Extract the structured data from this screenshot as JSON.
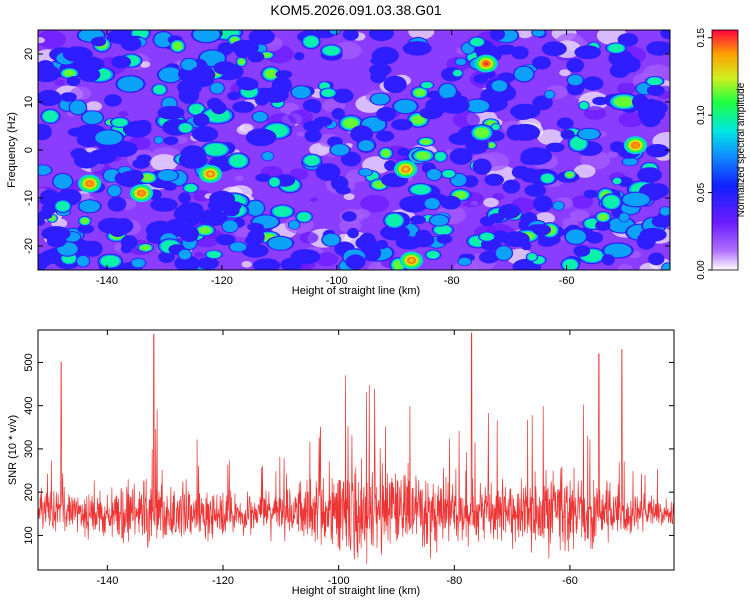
{
  "title": "KOM5.2026.091.03.38.G01",
  "chart_data": [
    {
      "type": "heatmap",
      "xlabel": "Height of straight line (km)",
      "ylabel": "Frequency (Hz)",
      "xlim": [
        -152,
        -42
      ],
      "ylim": [
        -25,
        25
      ],
      "xticks": [
        "-140",
        "-120",
        "-100",
        "-80",
        "-60"
      ],
      "yticks": [
        "20",
        "10",
        "0",
        "-10",
        "-20"
      ],
      "colorbar": {
        "label": "Normalized spectral amplitude",
        "range": [
          0,
          0.155
        ],
        "ticks": [
          "0.00",
          "0.05",
          "0.10",
          "0.15"
        ]
      },
      "notable_peaks": [
        {
          "x": -143,
          "y": -7,
          "z": 0.14
        },
        {
          "x": -134,
          "y": -9,
          "z": 0.14
        },
        {
          "x": -122,
          "y": -5,
          "z": 0.13
        },
        {
          "x": -88,
          "y": -4,
          "z": 0.13
        },
        {
          "x": -74,
          "y": 18,
          "z": 0.15
        },
        {
          "x": -48,
          "y": 1,
          "z": 0.14
        },
        {
          "x": -87,
          "y": -23,
          "z": 0.13
        }
      ]
    },
    {
      "type": "line",
      "xlabel": "Height of straight line (km)",
      "ylabel": "SNR (10 * v/v)",
      "xlim": [
        -152,
        -42
      ],
      "ylim": [
        20,
        575
      ],
      "xticks": [
        "-140",
        "-120",
        "-100",
        "-80",
        "-60"
      ],
      "yticks": [
        "100",
        "200",
        "300",
        "400",
        "500"
      ],
      "series": [
        {
          "color": "#ee3333",
          "baseline": 150,
          "spread": 45,
          "max_peaks": [
            [
              -132,
              565
            ],
            [
              -77,
              568
            ],
            [
              -51,
              530
            ],
            [
              -148,
              500
            ],
            [
              -55,
              520
            ]
          ]
        }
      ]
    }
  ]
}
